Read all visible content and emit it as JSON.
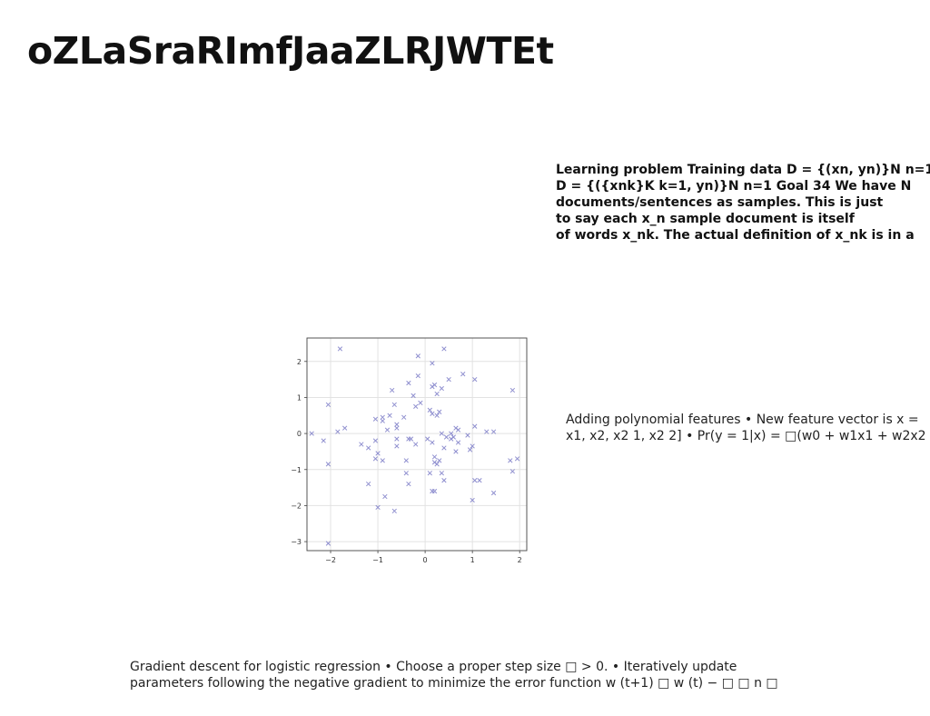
{
  "slide": {
    "title": "oZLaSraRImfJaaZLRJWTEt"
  },
  "text_block_1": {
    "lines": [
      "Learning problem Training data D = {(xn, yn)}N n=1",
      "D = {({xnk}K k=1, yn)}N n=1 Goal 34 We have N",
      "documents/sentences as samples. This is just",
      "to say each x_n sample document is itself",
      "of words x_nk. The actual definition of x_nk is in a"
    ]
  },
  "text_block_2": {
    "lines": [
      "Adding polynomial features • New feature vector is x =",
      "x1, x2, x2 1, x2 2] • Pr(y = 1|x) = □(w0 + w1x1 + w2x2 +"
    ]
  },
  "text_block_3": {
    "lines": [
      "Gradient descent for logistic regression • Choose a proper step size □ > 0. • Iteratively update",
      "parameters following the negative gradient to minimize the error function w (t+1) □ w (t) − □ □ n □"
    ]
  },
  "chart_data": {
    "type": "scatter",
    "title": "",
    "xlabel": "",
    "ylabel": "",
    "xlim": [
      -2.5,
      2.15
    ],
    "ylim": [
      -3.25,
      2.65
    ],
    "xticks": [
      "−2",
      "−1",
      "0",
      "1",
      "2"
    ],
    "xtick_values": [
      -2,
      -1,
      0,
      1,
      2
    ],
    "yticks": [
      "2",
      "1",
      "0",
      "−1",
      "−2",
      "−3"
    ],
    "ytick_values": [
      2,
      1,
      0,
      -1,
      -2,
      -3
    ],
    "grid": true,
    "marker": "x",
    "marker_color": "#8f8fcf",
    "points": [
      [
        -1.8,
        2.35
      ],
      [
        -0.15,
        2.15
      ],
      [
        0.4,
        2.35
      ],
      [
        0.15,
        1.95
      ],
      [
        -2.05,
        0.8
      ],
      [
        -2.4,
        0.0
      ],
      [
        -2.15,
        -0.2
      ],
      [
        -1.85,
        0.05
      ],
      [
        -1.7,
        0.15
      ],
      [
        -2.05,
        -0.85
      ],
      [
        -2.05,
        -3.05
      ],
      [
        -1.35,
        -0.3
      ],
      [
        -1.2,
        -0.4
      ],
      [
        -1.0,
        -2.05
      ],
      [
        -1.2,
        -1.4
      ],
      [
        -0.85,
        -1.75
      ],
      [
        -0.65,
        -2.15
      ],
      [
        -1.05,
        0.4
      ],
      [
        -0.9,
        0.45
      ],
      [
        -0.9,
        0.35
      ],
      [
        -0.75,
        0.5
      ],
      [
        -0.6,
        0.25
      ],
      [
        -0.6,
        0.15
      ],
      [
        -0.8,
        0.1
      ],
      [
        -0.6,
        -0.15
      ],
      [
        -0.6,
        -0.35
      ],
      [
        -1.05,
        -0.2
      ],
      [
        -1.0,
        -0.55
      ],
      [
        -0.9,
        -0.75
      ],
      [
        -1.05,
        -0.7
      ],
      [
        -0.7,
        1.2
      ],
      [
        -0.65,
        0.8
      ],
      [
        -0.45,
        0.45
      ],
      [
        -0.35,
        1.4
      ],
      [
        -0.25,
        1.05
      ],
      [
        -0.2,
        0.75
      ],
      [
        -0.1,
        0.85
      ],
      [
        -0.15,
        1.6
      ],
      [
        -0.35,
        -0.15
      ],
      [
        -0.3,
        -0.15
      ],
      [
        -0.2,
        -0.3
      ],
      [
        -0.4,
        -0.75
      ],
      [
        -0.4,
        -1.1
      ],
      [
        -0.35,
        -1.4
      ],
      [
        0.05,
        -0.15
      ],
      [
        0.15,
        -0.25
      ],
      [
        0.1,
        0.65
      ],
      [
        0.15,
        0.55
      ],
      [
        0.25,
        0.5
      ],
      [
        0.3,
        0.6
      ],
      [
        0.15,
        1.3
      ],
      [
        0.2,
        1.35
      ],
      [
        0.25,
        1.1
      ],
      [
        0.35,
        1.25
      ],
      [
        0.5,
        1.5
      ],
      [
        0.8,
        1.65
      ],
      [
        1.05,
        1.5
      ],
      [
        1.85,
        1.2
      ],
      [
        0.35,
        0.0
      ],
      [
        0.45,
        -0.1
      ],
      [
        0.55,
        -0.15
      ],
      [
        0.6,
        -0.1
      ],
      [
        0.55,
        0.0
      ],
      [
        0.65,
        0.15
      ],
      [
        0.7,
        0.1
      ],
      [
        0.4,
        -0.4
      ],
      [
        0.2,
        -0.65
      ],
      [
        0.2,
        -0.8
      ],
      [
        0.3,
        -0.75
      ],
      [
        0.25,
        -0.85
      ],
      [
        0.1,
        -1.1
      ],
      [
        0.35,
        -1.1
      ],
      [
        0.4,
        -1.3
      ],
      [
        0.15,
        -1.6
      ],
      [
        0.2,
        -1.6
      ],
      [
        0.7,
        -0.25
      ],
      [
        0.65,
        -0.5
      ],
      [
        0.9,
        -0.05
      ],
      [
        0.95,
        -0.45
      ],
      [
        1.0,
        -0.35
      ],
      [
        1.05,
        0.2
      ],
      [
        1.3,
        0.05
      ],
      [
        1.45,
        0.05
      ],
      [
        1.05,
        -1.3
      ],
      [
        1.15,
        -1.3
      ],
      [
        1.0,
        -1.85
      ],
      [
        1.45,
        -1.65
      ],
      [
        1.8,
        -0.75
      ],
      [
        1.95,
        -0.7
      ],
      [
        1.85,
        -1.05
      ]
    ]
  }
}
